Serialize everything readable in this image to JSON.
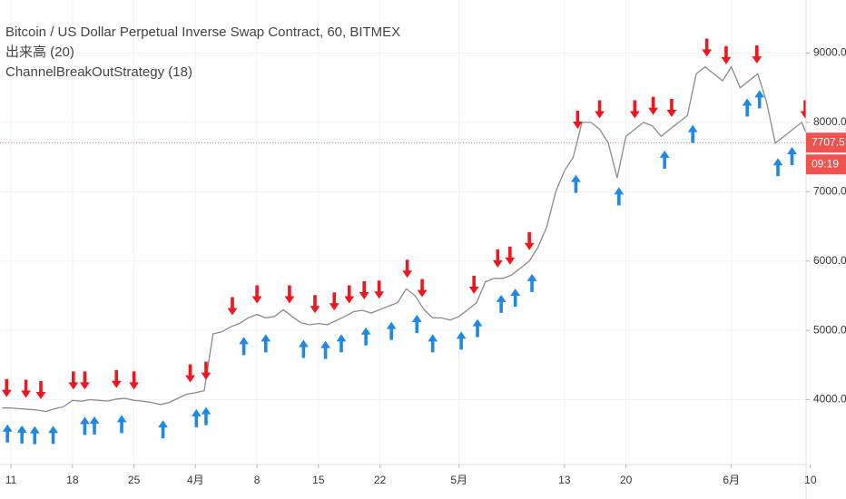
{
  "chart_data": {
    "type": "line",
    "title": "Bitcoin / US Dollar Perpetual Inverse Swap Contract, 60, BITMEX",
    "legend_lines": [
      "出来高 (20)",
      "ChannelBreakOutStrategy (18)"
    ],
    "series": [
      {
        "color": "#8a8a8a",
        "x": [
          -1,
          0,
          1,
          2,
          3,
          4,
          5,
          6,
          7,
          8,
          9,
          10,
          11,
          12,
          13,
          14,
          15,
          16,
          17,
          18,
          19,
          20,
          21,
          22,
          23,
          24,
          25,
          26,
          27,
          28,
          29,
          30,
          31,
          32,
          33,
          34,
          35,
          36,
          37,
          38,
          39,
          40,
          41,
          42,
          43,
          44,
          45,
          46,
          47,
          48,
          49,
          50,
          51,
          52,
          53,
          54,
          55,
          56,
          57,
          58,
          59,
          60,
          61,
          62,
          63,
          64,
          65,
          66,
          67,
          68,
          69,
          70,
          71,
          72,
          73,
          74,
          75,
          76,
          77,
          78,
          79,
          80,
          81,
          82,
          83,
          84,
          85,
          86,
          87,
          88,
          89,
          90,
          91
        ],
        "values": [
          3880,
          3880,
          3870,
          3860,
          3850,
          3830,
          3870,
          3900,
          3990,
          3980,
          4000,
          3990,
          3980,
          4010,
          4020,
          3990,
          3980,
          3960,
          3930,
          3960,
          4020,
          4080,
          4100,
          4130,
          4950,
          4980,
          5050,
          5100,
          5180,
          5230,
          5180,
          5200,
          5300,
          5200,
          5110,
          5080,
          5100,
          5080,
          5140,
          5200,
          5270,
          5290,
          5250,
          5300,
          5350,
          5400,
          5600,
          5500,
          5300,
          5180,
          5180,
          5150,
          5200,
          5300,
          5400,
          5700,
          5750,
          5750,
          5800,
          5900,
          6000,
          6200,
          6500,
          7000,
          7300,
          7500,
          8000,
          8000,
          7900,
          7700,
          7200,
          7800,
          7900,
          8000,
          7950,
          7800,
          7900,
          8000,
          8100,
          8700,
          8800,
          8700,
          8600,
          8800,
          8500,
          8600,
          8700,
          8300,
          7700,
          7800,
          7900,
          8000,
          7707.5
        ]
      }
    ],
    "markers": [
      {
        "symbol": "down",
        "color": "#f0161d",
        "x": [
          -0.5,
          1.7,
          3.4,
          7.1,
          8.4,
          12,
          14,
          20.4,
          22.2,
          25.2,
          28,
          31.7,
          34.6,
          36.8,
          38.5,
          40.2,
          41.9,
          45.1,
          46.8,
          52.7,
          55.4,
          56.8,
          59,
          64.5,
          67,
          71,
          73.1,
          75.2,
          79.2,
          81.4,
          84.9,
          90.4
        ],
        "values": [
          3880,
          3870,
          3850,
          3990,
          3990,
          4010,
          3990,
          4090,
          4130,
          5060,
          5230,
          5230,
          5090,
          5130,
          5230,
          5290,
          5300,
          5600,
          5320,
          5370,
          5750,
          5790,
          6000,
          7750,
          7900,
          7900,
          7950,
          7920,
          8790,
          8680,
          8690,
          7900
        ]
      },
      {
        "symbol": "up",
        "color": "#1e88e5",
        "x": [
          -0.4,
          1.25,
          2.7,
          4.8,
          8.4,
          9.5,
          12.6,
          17.3,
          21.1,
          22.2,
          26.5,
          29,
          33.3,
          35.8,
          37.6,
          40.4,
          43.3,
          46.2,
          48,
          51.25,
          53.1,
          55.8,
          57.4,
          59.3,
          64.3,
          69.2,
          74.4,
          77.6,
          83.8,
          85.2,
          87.3,
          88.9
        ],
        "values": [
          3880,
          3865,
          3855,
          3860,
          3990,
          3995,
          4015,
          3940,
          4100,
          4130,
          5140,
          5180,
          5100,
          5085,
          5180,
          5280,
          5360,
          5460,
          5180,
          5220,
          5400,
          5750,
          5840,
          6050,
          7480,
          7300,
          7830,
          8200,
          8580,
          8700,
          7720,
          7880
        ]
      }
    ],
    "xlim": [
      -1.25,
      90.5
    ],
    "xticks": [
      {
        "value": 0,
        "label": "11"
      },
      {
        "value": 7,
        "label": "18"
      },
      {
        "value": 14,
        "label": "25"
      },
      {
        "value": 21,
        "label": "4月"
      },
      {
        "value": 28,
        "label": "8"
      },
      {
        "value": 35,
        "label": "15"
      },
      {
        "value": 42,
        "label": "22"
      },
      {
        "value": 51,
        "label": "5月"
      },
      {
        "value": 63,
        "label": "13"
      },
      {
        "value": 70,
        "label": "20"
      },
      {
        "value": 82,
        "label": "6月"
      },
      {
        "value": 91,
        "label": "10"
      }
    ],
    "ylim": [
      3065,
      9765
    ],
    "yticks": [
      {
        "value": 4000,
        "label": "4000.0"
      },
      {
        "value": 5000,
        "label": "5000.0"
      },
      {
        "value": 6000,
        "label": "6000.0"
      },
      {
        "value": 7000,
        "label": "7000.0"
      },
      {
        "value": 8000,
        "label": "8000.0"
      },
      {
        "value": 9000,
        "label": "9000.0"
      }
    ],
    "grid": true,
    "last_price": 7707.5,
    "last_price_color": "#ef5350",
    "countdown": "09:19"
  }
}
